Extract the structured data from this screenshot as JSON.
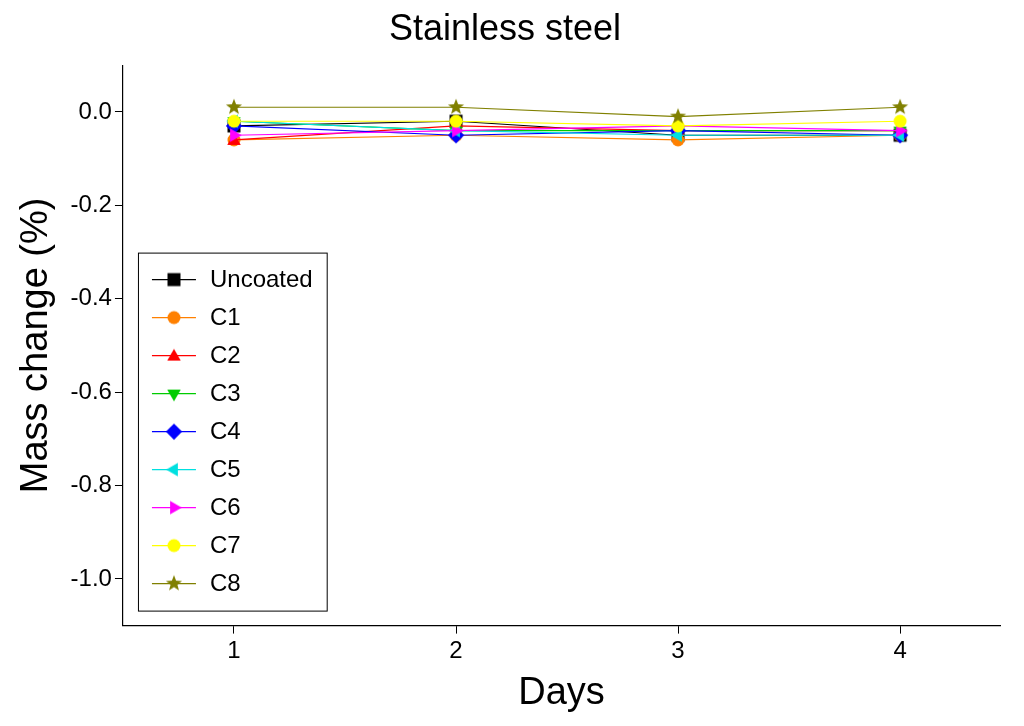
{
  "chart_data": {
    "type": "line",
    "title": "Stainless steel",
    "x_label": "Days",
    "y_label": "Mass change (%)",
    "x": [
      1,
      2,
      3,
      4
    ],
    "xlim": [
      0.5,
      4.45
    ],
    "xticks": [
      1,
      2,
      3,
      4
    ],
    "ylim": [
      -1.1,
      0.1
    ],
    "yticks": [
      {
        "value": -1,
        "label": "-1.0"
      },
      -0.8,
      -0.6,
      -0.4,
      -0.2,
      {
        "value": 0,
        "label": "0.0"
      }
    ],
    "grid": false,
    "legend": "lower left",
    "series": [
      {
        "name": "Uncoated",
        "color": "#000000",
        "marker": "square",
        "line_style": "solid",
        "values": [
          -0.03,
          -0.02,
          -0.05,
          -0.05
        ]
      },
      {
        "name": "C1",
        "color": "#ff8000",
        "marker": "circle",
        "line_style": "solid",
        "values": [
          -0.06,
          -0.05,
          -0.06,
          -0.05
        ]
      },
      {
        "name": "C2",
        "color": "#ff0000",
        "marker": "triangle-up",
        "line_style": "solid",
        "values": [
          -0.06,
          -0.03,
          -0.04,
          -0.04
        ]
      },
      {
        "name": "C3",
        "color": "#00cc00",
        "marker": "triangle-down",
        "line_style": "solid",
        "values": [
          -0.02,
          -0.04,
          -0.04,
          -0.04
        ]
      },
      {
        "name": "C4",
        "color": "#0000ff",
        "marker": "diamond",
        "line_style": "solid",
        "values": [
          -0.03,
          -0.05,
          -0.04,
          -0.05
        ]
      },
      {
        "name": "C5",
        "color": "#00e0e0",
        "marker": "triangle-left",
        "line_style": "solid",
        "values": [
          -0.02,
          -0.04,
          -0.05,
          -0.05
        ]
      },
      {
        "name": "C6",
        "color": "#ff00ff",
        "marker": "triangle-right",
        "line_style": "solid",
        "values": [
          -0.05,
          -0.04,
          -0.03,
          -0.04
        ]
      },
      {
        "name": "C7",
        "color": "#ffff00",
        "marker": "circle",
        "line_style": "solid",
        "values": [
          -0.02,
          -0.02,
          -0.03,
          -0.02
        ]
      },
      {
        "name": "C8",
        "color": "#808000",
        "marker": "star",
        "line_style": "solid",
        "values": [
          0.01,
          0.01,
          -0.01,
          0.01
        ]
      }
    ]
  }
}
